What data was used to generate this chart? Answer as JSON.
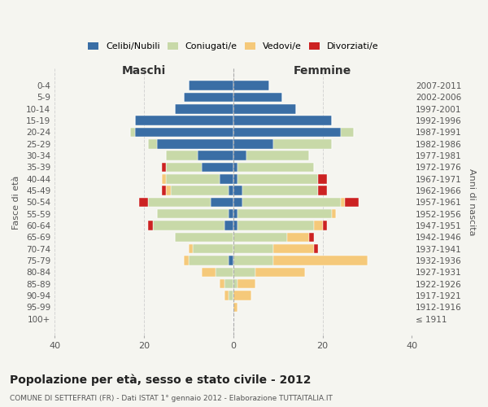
{
  "age_groups": [
    "100+",
    "95-99",
    "90-94",
    "85-89",
    "80-84",
    "75-79",
    "70-74",
    "65-69",
    "60-64",
    "55-59",
    "50-54",
    "45-49",
    "40-44",
    "35-39",
    "30-34",
    "25-29",
    "20-24",
    "15-19",
    "10-14",
    "5-9",
    "0-4"
  ],
  "birth_years": [
    "≤ 1911",
    "1912-1916",
    "1917-1921",
    "1922-1926",
    "1927-1931",
    "1932-1936",
    "1937-1941",
    "1942-1946",
    "1947-1951",
    "1952-1956",
    "1957-1961",
    "1962-1966",
    "1967-1971",
    "1972-1976",
    "1977-1981",
    "1982-1986",
    "1987-1991",
    "1992-1996",
    "1997-2001",
    "2002-2006",
    "2007-2011"
  ],
  "maschi": {
    "celibi": [
      0,
      0,
      0,
      0,
      0,
      1,
      0,
      0,
      2,
      1,
      5,
      1,
      3,
      7,
      8,
      17,
      22,
      22,
      13,
      11,
      10
    ],
    "coniugati": [
      0,
      0,
      1,
      2,
      4,
      9,
      9,
      13,
      16,
      16,
      14,
      13,
      12,
      8,
      7,
      2,
      1,
      0,
      0,
      0,
      0
    ],
    "vedovi": [
      0,
      0,
      1,
      1,
      3,
      1,
      1,
      0,
      0,
      0,
      0,
      1,
      1,
      0,
      0,
      0,
      0,
      0,
      0,
      0,
      0
    ],
    "divorziati": [
      0,
      0,
      0,
      0,
      0,
      0,
      0,
      0,
      1,
      0,
      2,
      1,
      0,
      1,
      0,
      0,
      0,
      0,
      0,
      0,
      0
    ]
  },
  "femmine": {
    "nubili": [
      0,
      0,
      0,
      0,
      0,
      0,
      0,
      0,
      1,
      1,
      2,
      2,
      1,
      1,
      3,
      9,
      24,
      22,
      14,
      11,
      8
    ],
    "coniugate": [
      0,
      0,
      0,
      1,
      5,
      9,
      9,
      12,
      17,
      21,
      22,
      17,
      18,
      17,
      14,
      13,
      3,
      0,
      0,
      0,
      0
    ],
    "vedove": [
      0,
      1,
      4,
      4,
      11,
      21,
      9,
      5,
      2,
      1,
      1,
      0,
      0,
      0,
      0,
      0,
      0,
      0,
      0,
      0,
      0
    ],
    "divorziate": [
      0,
      0,
      0,
      0,
      0,
      0,
      1,
      1,
      1,
      0,
      3,
      2,
      2,
      0,
      0,
      0,
      0,
      0,
      0,
      0,
      0
    ]
  },
  "colors": {
    "celibi_nubili": "#3a6ea5",
    "coniugati": "#c8d9a8",
    "vedovi": "#f5c97a",
    "divorziati": "#cc2222"
  },
  "xlim": 40,
  "title": "Popolazione per età, sesso e stato civile - 2012",
  "subtitle": "COMUNE DI SETTEFRATI (FR) - Dati ISTAT 1° gennaio 2012 - Elaborazione TUTTAITALIA.IT",
  "ylabel_left": "Fasce di età",
  "ylabel_right": "Anni di nascita",
  "xlabel_left": "Maschi",
  "xlabel_right": "Femmine",
  "background_color": "#f5f5f0"
}
